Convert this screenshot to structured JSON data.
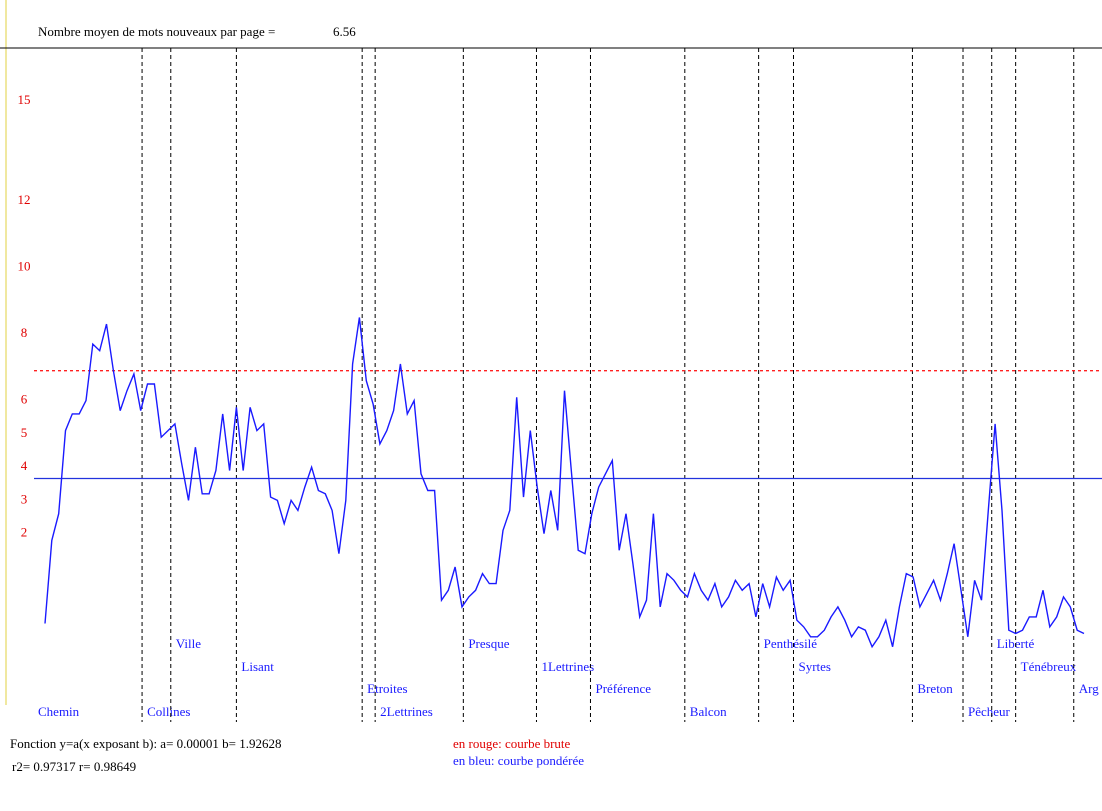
{
  "chart_data": {
    "type": "line",
    "mean_label": "Nombre moyen de mots nouveaux par page =",
    "mean_value": "6.56",
    "function_text": "Fonction y=a(x exposant b): a= 0.00001  b= 1.92628",
    "r_text": "r2= 0.97317  r= 0.98649",
    "legend_red": "en rouge: courbe brute",
    "legend_blue": "en bleu: courbe pondérée",
    "xlim": [
      0,
      152
    ],
    "ylim": [
      -3.6,
      16.6
    ],
    "yticks": [
      15,
      12,
      10,
      8,
      6,
      5,
      4,
      3,
      2
    ],
    "ytick_color": "#e00000",
    "reference_lines": [
      {
        "value": 6.9,
        "color": "#ff2020",
        "style": "dashed"
      },
      {
        "value": 3.66,
        "color": "#2233dd",
        "style": "solid"
      }
    ],
    "sections": [
      {
        "label": "Chemin",
        "start": 0
      },
      {
        "label": "Collines",
        "start": 14.2
      },
      {
        "label": "Ville",
        "start": 18.4
      },
      {
        "label": "Lisant",
        "start": 28
      },
      {
        "label": "Etroites",
        "start": 46.4
      },
      {
        "label": "2Lettrines",
        "start": 48.3
      },
      {
        "label": "Presque",
        "start": 61.2
      },
      {
        "label": "1Lettrines",
        "start": 71.9
      },
      {
        "label": "Préférence",
        "start": 79.8
      },
      {
        "label": "Balcon",
        "start": 93.6
      },
      {
        "label": "Penthésilé",
        "start": 104.4
      },
      {
        "label": "Syrtes",
        "start": 109.5
      },
      {
        "label": "Breton",
        "start": 126.9
      },
      {
        "label": "Pêcheur",
        "start": 134.3
      },
      {
        "label": "Liberté",
        "start": 138.5
      },
      {
        "label": "Ténébreux",
        "start": 142
      },
      {
        "label": "Arg",
        "start": 150.5
      }
    ],
    "series": [
      {
        "color": "#1a1aff",
        "values": [
          -0.7,
          1.8,
          2.6,
          5.1,
          5.6,
          5.6,
          6.0,
          7.7,
          7.5,
          8.3,
          6.9,
          5.7,
          6.3,
          6.8,
          5.7,
          6.5,
          6.5,
          4.9,
          5.1,
          5.3,
          4.1,
          3.0,
          4.6,
          3.2,
          3.2,
          3.9,
          5.6,
          3.9,
          5.8,
          3.9,
          5.8,
          5.1,
          5.3,
          3.1,
          3.0,
          2.3,
          3.0,
          2.7,
          3.4,
          4.0,
          3.3,
          3.2,
          2.7,
          1.4,
          3.0,
          7.1,
          8.5,
          6.6,
          5.9,
          4.7,
          5.1,
          5.7,
          7.1,
          5.6,
          6.0,
          3.8,
          3.3,
          3.3,
          0.0,
          0.3,
          1.0,
          -0.2,
          0.1,
          0.3,
          0.8,
          0.5,
          0.5,
          2.1,
          2.7,
          6.1,
          3.1,
          5.1,
          3.4,
          2.0,
          3.3,
          2.1,
          6.3,
          3.9,
          1.5,
          1.4,
          2.6,
          3.4,
          3.8,
          4.2,
          1.5,
          2.6,
          1.1,
          -0.5,
          0.0,
          2.6,
          -0.2,
          0.8,
          0.6,
          0.3,
          0.1,
          0.8,
          0.3,
          0.0,
          0.5,
          -0.2,
          0.1,
          0.6,
          0.3,
          0.5,
          -0.5,
          0.5,
          -0.2,
          0.7,
          0.3,
          0.6,
          -0.6,
          -0.8,
          -1.1,
          -1.1,
          -0.9,
          -0.5,
          -0.2,
          -0.6,
          -1.1,
          -0.8,
          -0.9,
          -1.4,
          -1.1,
          -0.6,
          -1.4,
          -0.2,
          0.8,
          0.7,
          -0.2,
          0.2,
          0.6,
          0.0,
          0.8,
          1.7,
          0.3,
          -1.1,
          0.6,
          0.0,
          2.7,
          5.3,
          2.7,
          -0.9,
          -1.0,
          -0.9,
          -0.5,
          -0.5,
          0.3,
          -0.8,
          -0.5,
          0.1,
          -0.2,
          -0.9,
          -1.0
        ]
      }
    ]
  }
}
